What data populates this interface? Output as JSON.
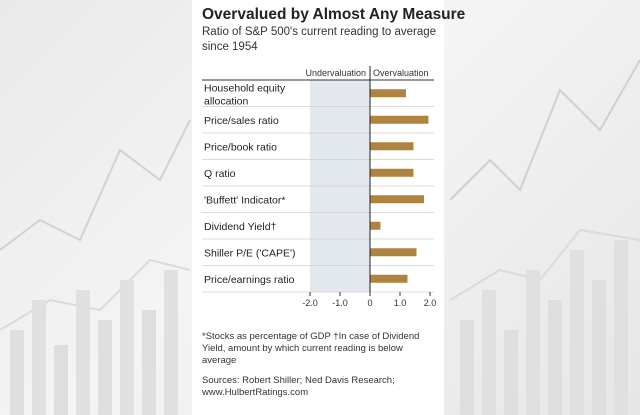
{
  "chart_data": {
    "type": "bar",
    "orientation": "horizontal",
    "title": "Overvalued by Almost Any Measure",
    "subtitle": "Ratio of S&P 500's current reading to average since 1954",
    "categories": [
      "Household equity allocation",
      "Price/sales ratio",
      "Price/book ratio",
      "Q ratio",
      "'Buffett' Indicator*",
      "Dividend Yield†",
      "Shiller P/E ('CAPE')",
      "Price/earnings ratio"
    ],
    "values": [
      1.2,
      1.95,
      1.45,
      1.45,
      1.8,
      0.35,
      1.55,
      1.25
    ],
    "xlim": [
      -2.0,
      2.0
    ],
    "xticks": [
      "-2.0",
      "-1.0",
      "0",
      "1.0",
      "2.0"
    ],
    "region_labels": {
      "left": "Undervaluation",
      "right": "Overvaluation"
    },
    "grid": false,
    "colors": {
      "bar": "#b08440",
      "undervaluation_shade": "#e3e7ee",
      "text": "#222222"
    }
  },
  "notes": {
    "footnote": "*Stocks as percentage of GDP  †In case of Dividend Yield, amount by which current reading is below average",
    "sources": "Sources: Robert Shiller; Ned Davis Research; www.HulbertRatings.com"
  }
}
